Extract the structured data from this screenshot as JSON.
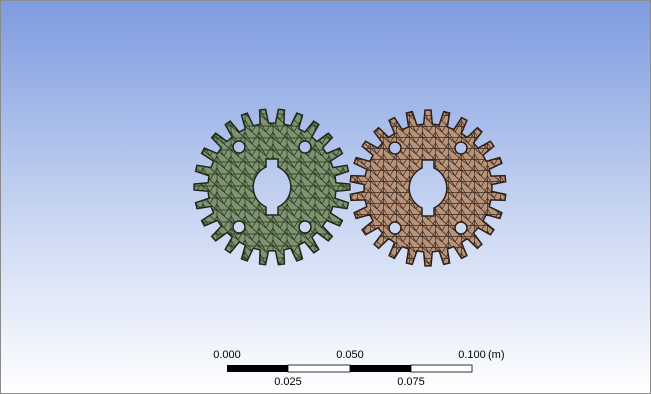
{
  "scale_bar": {
    "labels_top": [
      "0.000",
      "0.050",
      "0.100"
    ],
    "unit": "(m)",
    "labels_bottom": [
      "0.025",
      "0.075"
    ]
  }
}
